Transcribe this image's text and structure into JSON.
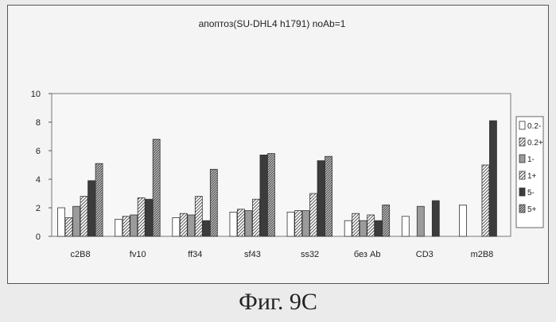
{
  "figure": {
    "caption": "Фиг. 9С"
  },
  "chart_data": {
    "type": "bar",
    "title": "апоптоз(SU-DHL4 h1791) noAb=1",
    "xlabel": "",
    "ylabel": "",
    "ylim": [
      0,
      10
    ],
    "yticks": [
      "0",
      "2",
      "4",
      "6",
      "8",
      "10"
    ],
    "grid": false,
    "legend_position": "right",
    "categories": [
      "c2B8",
      "fv10",
      "ff34",
      "sf43",
      "ss32",
      "без Ab",
      "CD3",
      "m2B8"
    ],
    "series": [
      {
        "name": "0.2-",
        "color": "#ffffff",
        "pattern": "none",
        "values": [
          2.0,
          1.2,
          1.3,
          1.7,
          1.7,
          1.1,
          1.4,
          2.2
        ]
      },
      {
        "name": "0.2+",
        "color": "#d9d9d9",
        "pattern": "hatch",
        "values": [
          1.3,
          1.4,
          1.6,
          1.9,
          1.8,
          1.6,
          null,
          null
        ]
      },
      {
        "name": "1-",
        "color": "#9b9b9b",
        "pattern": "none",
        "values": [
          2.1,
          1.5,
          1.5,
          1.8,
          1.8,
          1.1,
          2.1,
          null
        ]
      },
      {
        "name": "1+",
        "color": "#d2d2d2",
        "pattern": "hatch",
        "values": [
          2.8,
          2.7,
          2.8,
          2.6,
          3.0,
          1.5,
          null,
          5.0
        ]
      },
      {
        "name": "5-",
        "color": "#3c3c3c",
        "pattern": "none",
        "values": [
          3.9,
          2.6,
          1.1,
          5.7,
          5.3,
          1.1,
          2.5,
          8.1
        ]
      },
      {
        "name": "5+",
        "color": "#e0e0e0",
        "pattern": "hatch-dense",
        "values": [
          5.1,
          6.8,
          4.7,
          5.8,
          5.6,
          2.2,
          null,
          null
        ]
      }
    ]
  }
}
